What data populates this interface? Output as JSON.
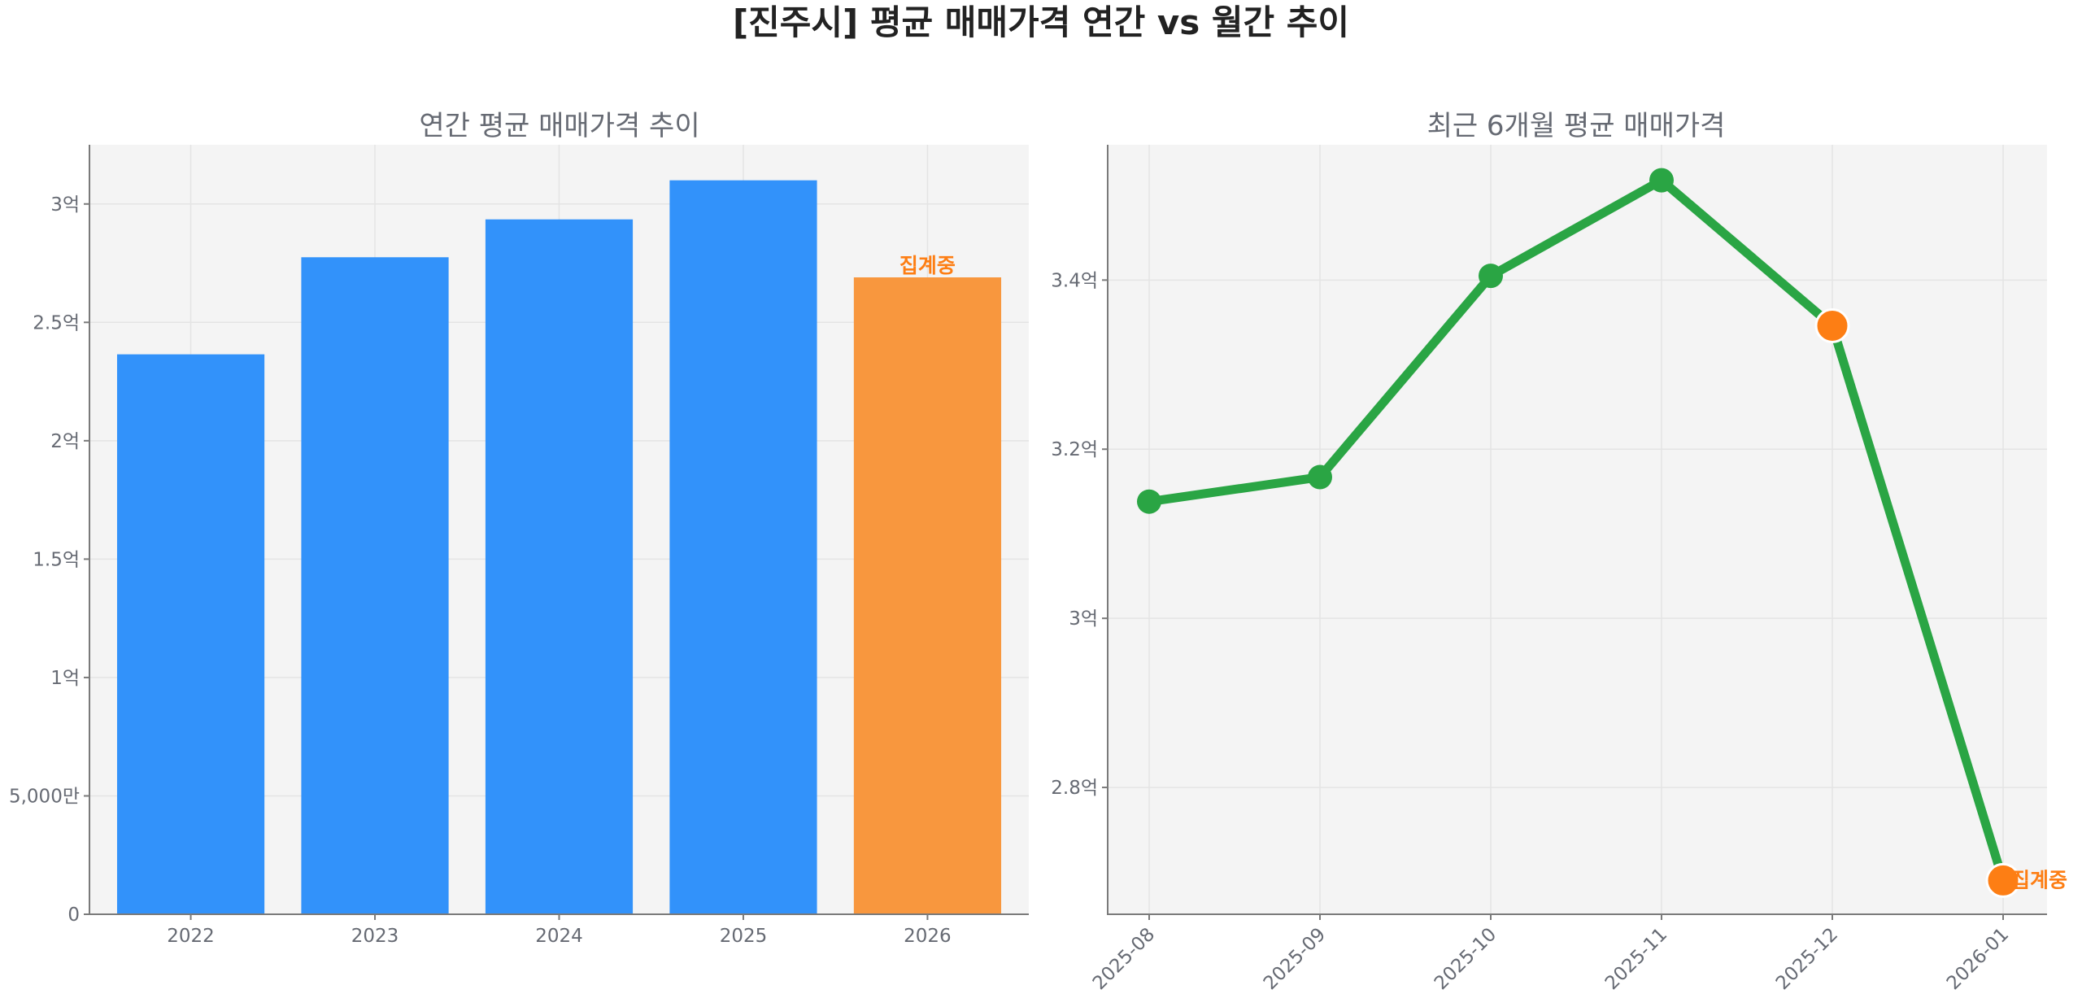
{
  "figure": {
    "suptitle": "[진주시] 평균 매매가격 연간 vs 월간 추이"
  },
  "colors": {
    "bar": "#3292fa",
    "bar_partial": "#f8973e",
    "line": "#2aa544",
    "marker": "#2aa544",
    "marker_highlight": "#fd7e14",
    "partial_text": "#fd7e14"
  },
  "chart_data": [
    {
      "type": "bar",
      "title": "연간 평균 매매가격 추이",
      "xlabel": "",
      "ylabel": "",
      "categories": [
        "2022",
        "2023",
        "2024",
        "2025",
        "2026"
      ],
      "values": [
        236500000,
        277500000,
        293500000,
        310000000,
        269000000
      ],
      "partial_flags": [
        false,
        false,
        false,
        false,
        true
      ],
      "partial_label": "집계중",
      "ylim": [
        0,
        325000000
      ],
      "yticks": [
        {
          "value": 0,
          "label": "0"
        },
        {
          "value": 50000000,
          "label": "5,000만"
        },
        {
          "value": 100000000,
          "label": "1억"
        },
        {
          "value": 150000000,
          "label": "1.5억"
        },
        {
          "value": 200000000,
          "label": "2억"
        },
        {
          "value": 250000000,
          "label": "2.5억"
        },
        {
          "value": 300000000,
          "label": "3억"
        }
      ],
      "grid": true,
      "legend": "none"
    },
    {
      "type": "line",
      "title": "최근 6개월 평균 매매가격",
      "xlabel": "",
      "ylabel": "",
      "categories": [
        "2025-08",
        "2025-09",
        "2025-10",
        "2025-11",
        "2025-12",
        "2026-01"
      ],
      "values": [
        313800000,
        316700000,
        340500000,
        351800000,
        334600000,
        269000000
      ],
      "highlight_flags": [
        false,
        false,
        false,
        false,
        true,
        true
      ],
      "partial_label": "집계중",
      "ylim": [
        265000000,
        356000000
      ],
      "yticks": [
        {
          "value": 280000000,
          "label": "2.8억"
        },
        {
          "value": 300000000,
          "label": "3억"
        },
        {
          "value": 320000000,
          "label": "3.2억"
        },
        {
          "value": 340000000,
          "label": "3.4억"
        }
      ],
      "grid": true,
      "legend": "none"
    }
  ]
}
